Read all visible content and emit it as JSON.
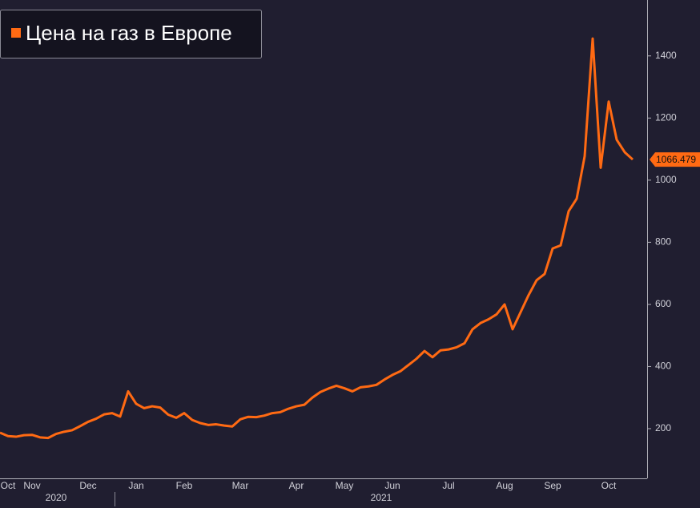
{
  "chart_data": {
    "type": "line",
    "title": "Цена на газ в Европе",
    "categories": [
      null,
      "Oct",
      null,
      null,
      "Nov",
      null,
      null,
      null,
      null,
      null,
      null,
      "Dec",
      null,
      null,
      null,
      null,
      null,
      "Jan",
      null,
      null,
      null,
      null,
      null,
      "Feb",
      null,
      null,
      null,
      null,
      null,
      null,
      "Mar",
      null,
      null,
      null,
      null,
      null,
      null,
      "Apr",
      null,
      null,
      null,
      null,
      null,
      "May",
      null,
      null,
      null,
      null,
      null,
      "Jun",
      null,
      null,
      null,
      null,
      null,
      null,
      "Jul",
      null,
      null,
      null,
      null,
      null,
      null,
      "Aug",
      null,
      null,
      null,
      null,
      null,
      "Sep",
      null,
      null,
      null,
      null,
      null,
      null,
      "Oct",
      null,
      null,
      null
    ],
    "years": [
      "2020",
      "2021"
    ],
    "series": [
      {
        "name": "Цена на газ в Европе",
        "color": "#ff6a13",
        "values": [
          187,
          176,
          174,
          179,
          180,
          172,
          170,
          183,
          190,
          195,
          208,
          222,
          232,
          246,
          250,
          239,
          320,
          280,
          266,
          272,
          268,
          245,
          235,
          250,
          228,
          218,
          212,
          214,
          210,
          207,
          230,
          238,
          237,
          242,
          250,
          253,
          264,
          272,
          277,
          300,
          318,
          329,
          338,
          330,
          320,
          333,
          336,
          341,
          358,
          373,
          385,
          405,
          425,
          450,
          430,
          452,
          455,
          462,
          475,
          520,
          540,
          552,
          568,
          600,
          520,
          575,
          630,
          678,
          698,
          780,
          790,
          900,
          940,
          1077,
          1456,
          1040,
          1253,
          1130,
          1090,
          1066.479
        ]
      }
    ],
    "ylim": [
      40,
      1580
    ],
    "yticks": [
      200,
      400,
      600,
      800,
      1000,
      1200,
      1400
    ],
    "legend": "top-left"
  }
}
